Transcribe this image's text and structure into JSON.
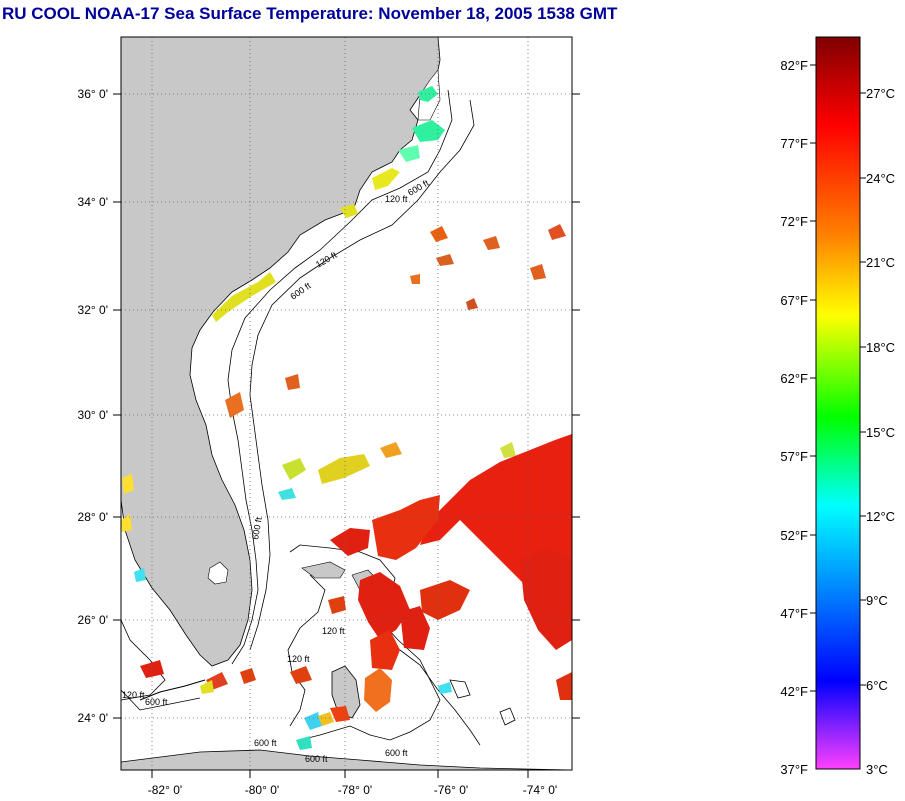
{
  "title": "RU COOL  NOAA-17  Sea Surface Temperature:  November 18, 2005 1538 GMT",
  "map": {
    "lat_labels": [
      "36° 0'",
      "34° 0'",
      "32° 0'",
      "30° 0'",
      "28° 0'",
      "26° 0'",
      "24° 0'"
    ],
    "lon_labels": [
      "-82° 0'",
      "-80° 0'",
      "-78° 0'",
      "-76° 0'",
      "-74° 0'"
    ],
    "land_color": "#c8c8c8",
    "contour_labels": [
      "120 ft",
      "600 ft",
      "120 ft",
      "600 ft",
      "600 ft",
      "120 ft",
      "120 ft",
      "600 ft",
      "120 ft",
      "600 ft",
      "600 ft",
      "600 ft"
    ]
  },
  "colorbar": {
    "fahrenheit_labels": [
      "82°F",
      "77°F",
      "72°F",
      "67°F",
      "62°F",
      "57°F",
      "52°F",
      "47°F",
      "42°F",
      "37°F"
    ],
    "celsius_labels": [
      "27°C",
      "24°C",
      "21°C",
      "18°C",
      "15°C",
      "12°C",
      "9°C",
      "6°C",
      "3°C"
    ],
    "gradient_colors": [
      "#800000",
      "#ff0000",
      "#ff8000",
      "#ffff00",
      "#00ff00",
      "#00ffff",
      "#0080ff",
      "#0000ff",
      "#ff40ff"
    ]
  }
}
